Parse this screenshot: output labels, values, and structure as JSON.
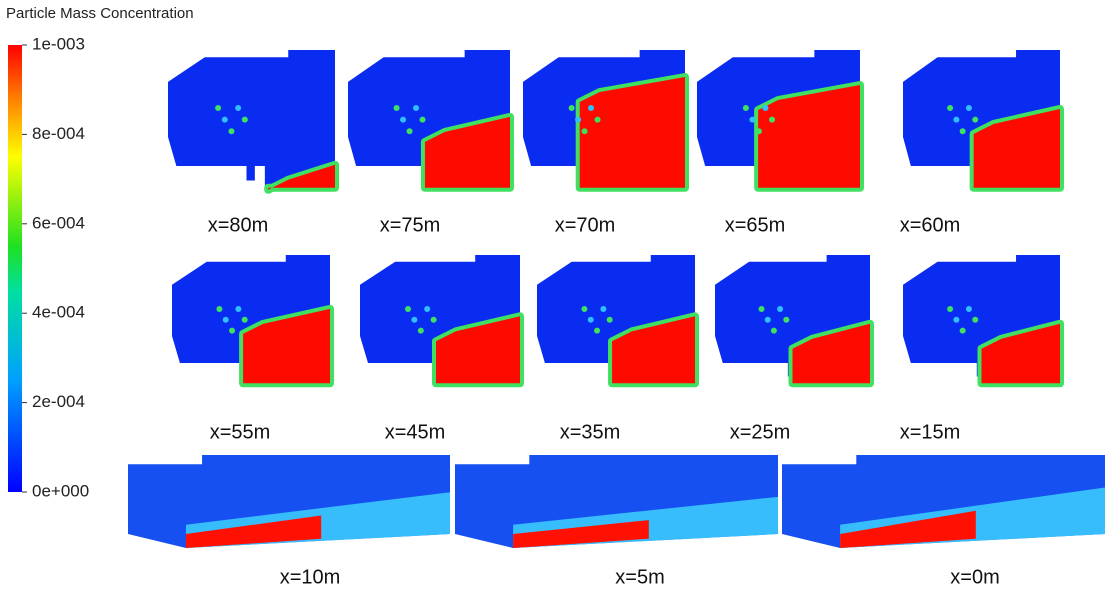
{
  "colorbar": {
    "title": "Particle Mass Concentration",
    "range": [
      0,
      0.001
    ],
    "ticks": [
      {
        "value": 0.001,
        "label": "1e-003"
      },
      {
        "value": 0.0008,
        "label": "8e-004"
      },
      {
        "value": 0.0006,
        "label": "6e-004"
      },
      {
        "value": 0.0004,
        "label": "4e-004"
      },
      {
        "value": 0.0002,
        "label": "2e-004"
      },
      {
        "value": 0,
        "label": "0e+000"
      }
    ]
  },
  "panels": [
    {
      "label": "x=80m"
    },
    {
      "label": "x=75m"
    },
    {
      "label": "x=70m"
    },
    {
      "label": "x=65m"
    },
    {
      "label": "x=60m"
    },
    {
      "label": "x=55m"
    },
    {
      "label": "x=45m"
    },
    {
      "label": "x=35m"
    },
    {
      "label": "x=25m"
    },
    {
      "label": "x=15m"
    },
    {
      "label": "x=10m"
    },
    {
      "label": "x=5m"
    },
    {
      "label": "x=0m"
    }
  ]
}
